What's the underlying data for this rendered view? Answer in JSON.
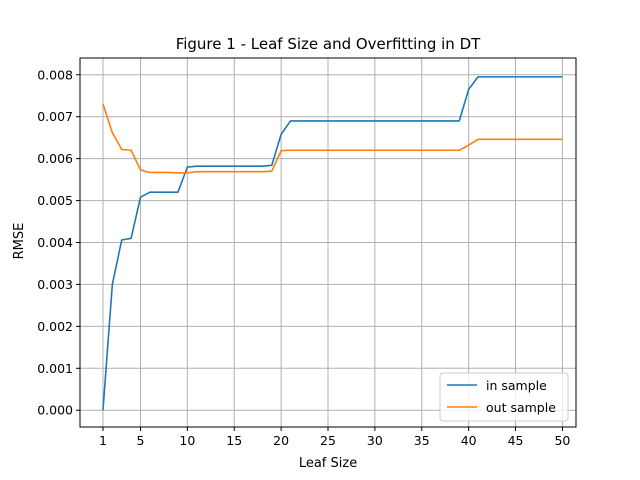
{
  "chart_data": {
    "type": "line",
    "title": "Figure 1 - Leaf Size and Overfitting in DT",
    "xlabel": "Leaf Size",
    "ylabel": "RMSE",
    "xlim": [
      -1.45,
      51.45
    ],
    "ylim": [
      -0.0004,
      0.0084
    ],
    "xticks": [
      1,
      5,
      10,
      15,
      20,
      25,
      30,
      35,
      40,
      45,
      50
    ],
    "yticks": [
      0.0,
      0.001,
      0.002,
      0.003,
      0.004,
      0.005,
      0.006,
      0.007,
      0.008
    ],
    "ytick_labels": [
      "0.000",
      "0.001",
      "0.002",
      "0.003",
      "0.004",
      "0.005",
      "0.006",
      "0.007",
      "0.008"
    ],
    "grid": true,
    "legend_position": "lower-right",
    "x": [
      1,
      2,
      3,
      4,
      5,
      6,
      7,
      8,
      9,
      10,
      11,
      12,
      13,
      14,
      15,
      16,
      17,
      18,
      19,
      20,
      21,
      22,
      23,
      24,
      25,
      26,
      27,
      28,
      29,
      30,
      31,
      32,
      33,
      34,
      35,
      36,
      37,
      38,
      39,
      40,
      41,
      42,
      43,
      44,
      45,
      46,
      47,
      48,
      49,
      50
    ],
    "series": [
      {
        "name": "in sample",
        "color": "#1f77b4",
        "values": [
          0.0,
          0.003,
          0.00406,
          0.0041,
          0.00508,
          0.0052,
          0.0052,
          0.0052,
          0.0052,
          0.0058,
          0.00582,
          0.00582,
          0.00582,
          0.00582,
          0.00582,
          0.00582,
          0.00582,
          0.00582,
          0.00584,
          0.00658,
          0.0069,
          0.0069,
          0.0069,
          0.0069,
          0.0069,
          0.0069,
          0.0069,
          0.0069,
          0.0069,
          0.0069,
          0.0069,
          0.0069,
          0.0069,
          0.0069,
          0.0069,
          0.0069,
          0.0069,
          0.0069,
          0.0069,
          0.00765,
          0.00795,
          0.00795,
          0.00795,
          0.00795,
          0.00795,
          0.00795,
          0.00795,
          0.00795,
          0.00795,
          0.00795
        ]
      },
      {
        "name": "out sample",
        "color": "#ff7f0e",
        "values": [
          0.0073,
          0.00662,
          0.00622,
          0.0062,
          0.00573,
          0.00567,
          0.00567,
          0.00567,
          0.00566,
          0.00566,
          0.00569,
          0.00569,
          0.00569,
          0.00569,
          0.00569,
          0.00569,
          0.00569,
          0.00569,
          0.0057,
          0.00619,
          0.0062,
          0.0062,
          0.0062,
          0.0062,
          0.0062,
          0.0062,
          0.0062,
          0.0062,
          0.0062,
          0.0062,
          0.0062,
          0.0062,
          0.0062,
          0.0062,
          0.0062,
          0.0062,
          0.0062,
          0.0062,
          0.0062,
          0.00632,
          0.00646,
          0.00646,
          0.00646,
          0.00646,
          0.00646,
          0.00646,
          0.00646,
          0.00646,
          0.00646,
          0.00646
        ]
      }
    ]
  }
}
